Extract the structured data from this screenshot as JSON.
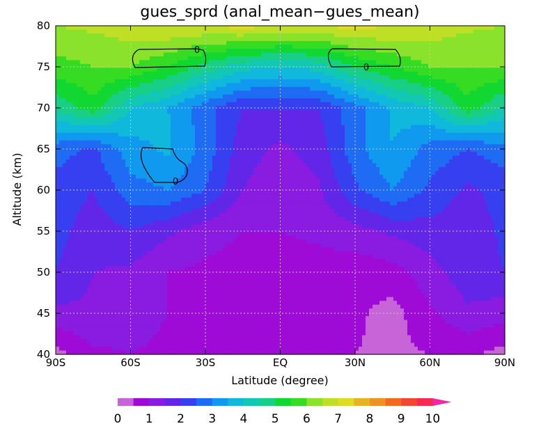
{
  "chart_data": {
    "type": "heatmap",
    "title": "gues_sprd (anal_mean−gues_mean)",
    "xlabel": "Latitude (degree)",
    "ylabel": "Altitude (km)",
    "xlim": [
      -90,
      90
    ],
    "ylim": [
      40,
      80
    ],
    "x_ticks": [
      {
        "value": -90,
        "label": "90S"
      },
      {
        "value": -60,
        "label": "60S"
      },
      {
        "value": -30,
        "label": "30S"
      },
      {
        "value": 0,
        "label": "EQ"
      },
      {
        "value": 30,
        "label": "30N"
      },
      {
        "value": 60,
        "label": "60N"
      },
      {
        "value": 90,
        "label": "90N"
      }
    ],
    "y_ticks": [
      {
        "value": 40,
        "label": "40"
      },
      {
        "value": 45,
        "label": "45"
      },
      {
        "value": 50,
        "label": "50"
      },
      {
        "value": 55,
        "label": "55"
      },
      {
        "value": 60,
        "label": "60"
      },
      {
        "value": 65,
        "label": "65"
      },
      {
        "value": 70,
        "label": "70"
      },
      {
        "value": 75,
        "label": "75"
      },
      {
        "value": 80,
        "label": "80"
      }
    ],
    "grid": true,
    "z_lat": [
      -90,
      -75,
      -60,
      -45,
      -30,
      -15,
      0,
      15,
      30,
      45,
      60,
      75,
      90
    ],
    "z_alt": [
      40,
      45,
      50,
      55,
      60,
      65,
      70,
      75,
      80
    ],
    "z_values": [
      [
        0.3,
        0.9,
        1.0,
        0.9,
        0.8,
        0.6,
        0.6,
        0.6,
        0.5,
        0.4,
        0.5,
        0.6,
        0.3
      ],
      [
        1.4,
        1.4,
        1.2,
        1.0,
        0.9,
        0.9,
        0.8,
        0.8,
        0.6,
        0.3,
        0.9,
        1.4,
        1.2
      ],
      [
        2.0,
        1.5,
        1.4,
        1.0,
        0.9,
        0.8,
        0.8,
        0.8,
        0.7,
        0.8,
        1.3,
        1.8,
        2.0
      ],
      [
        2.2,
        1.7,
        2.0,
        1.6,
        1.2,
        1.0,
        1.0,
        1.1,
        1.3,
        1.6,
        1.8,
        1.7,
        2.1
      ],
      [
        2.3,
        2.0,
        2.8,
        3.0,
        2.5,
        1.5,
        1.2,
        1.4,
        2.4,
        3.0,
        2.4,
        1.9,
        2.2
      ],
      [
        2.7,
        2.4,
        3.3,
        3.6,
        2.8,
        1.7,
        1.4,
        1.7,
        2.8,
        3.5,
        2.8,
        2.5,
        2.8
      ],
      [
        4.6,
        5.3,
        4.0,
        3.5,
        2.7,
        2.0,
        2.0,
        2.0,
        2.8,
        3.6,
        4.0,
        5.3,
        4.4
      ],
      [
        5.8,
        6.0,
        6.0,
        5.5,
        4.8,
        4.2,
        4.0,
        4.2,
        5.0,
        5.5,
        6.0,
        6.0,
        6.0
      ],
      [
        6.5,
        6.6,
        6.8,
        7.0,
        7.0,
        7.2,
        7.0,
        7.0,
        7.2,
        7.0,
        6.8,
        6.6,
        6.5
      ]
    ],
    "colorbar": {
      "levels": [
        0,
        0.5,
        1,
        1.5,
        2,
        2.5,
        3,
        3.5,
        4,
        4.5,
        5,
        5.5,
        6,
        6.5,
        7,
        7.5,
        8,
        8.5,
        9,
        9.5,
        10
      ],
      "labels": [
        "0",
        "1",
        "2",
        "3",
        "4",
        "5",
        "6",
        "7",
        "8",
        "9",
        "10"
      ],
      "extend": "max",
      "colors": [
        "#c664d8",
        "#9e0ad6",
        "#8a1be0",
        "#6226e8",
        "#3740f0",
        "#1e6cf4",
        "#0f9af0",
        "#10b8dc",
        "#12c8b4",
        "#18cf86",
        "#10d830",
        "#36dc22",
        "#8ae22a",
        "#bedf26",
        "#dedc25",
        "#e6b424",
        "#ee9224",
        "#f26a22",
        "#f34632",
        "#f52a52",
        "#f526a6"
      ]
    },
    "contours": [
      {
        "label": "0"
      },
      {
        "label": "0"
      },
      {
        "label": "0"
      }
    ]
  }
}
